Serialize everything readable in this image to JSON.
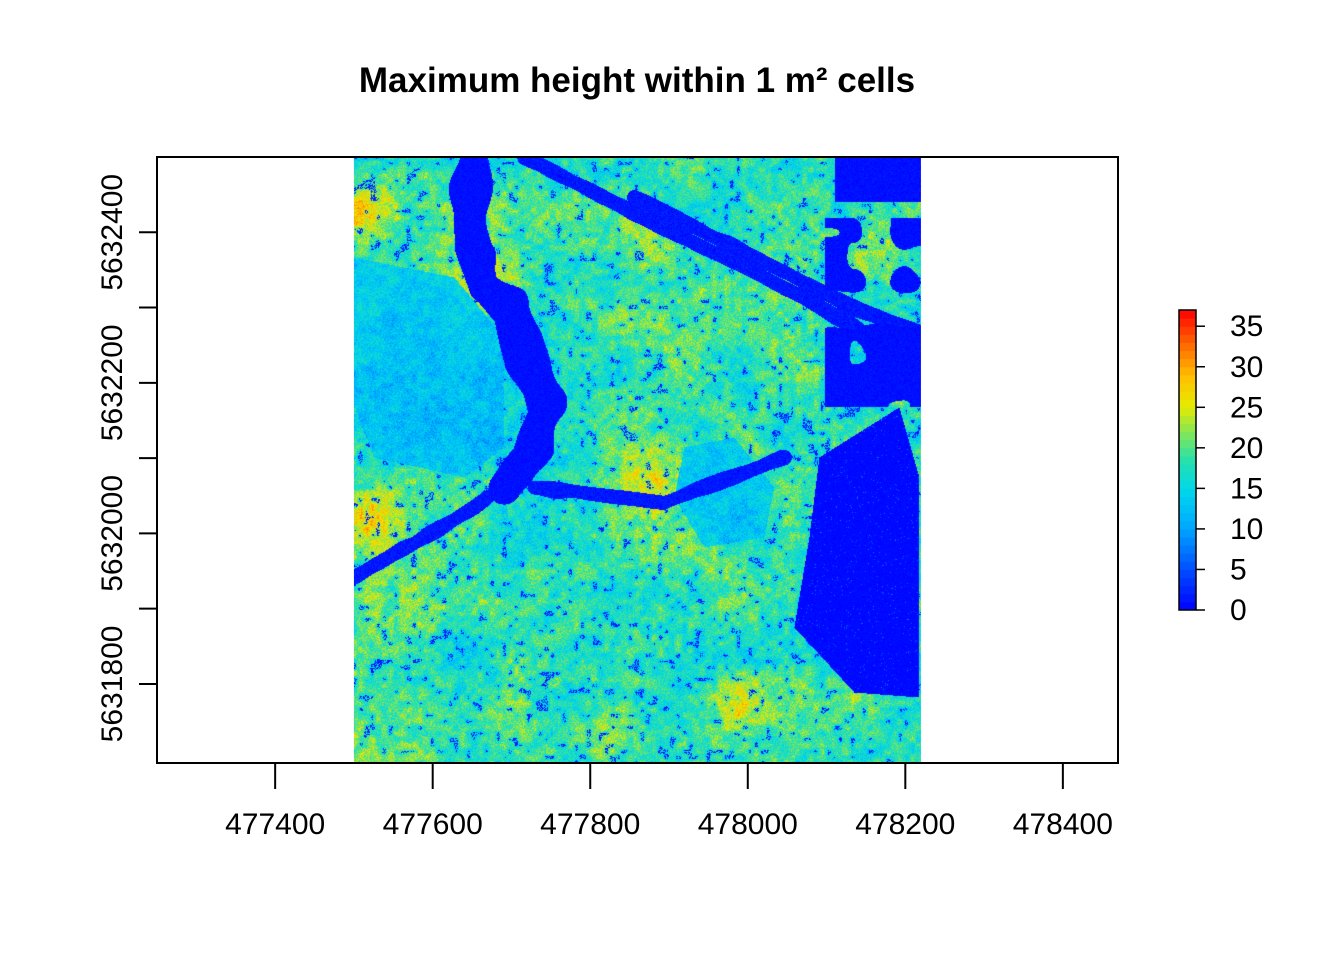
{
  "chart_data": {
    "type": "heatmap",
    "title": "Maximum height within 1 m² cells",
    "xlabel": "",
    "ylabel": "",
    "xlim": [
      477250,
      478470
    ],
    "ylim": [
      5631695,
      5632500
    ],
    "raster_extent": {
      "x": [
        477500,
        478220
      ],
      "y": [
        5631695,
        5632500
      ]
    },
    "x_ticks": [
      477400,
      477600,
      477800,
      478000,
      478200,
      478400
    ],
    "y_ticks": [
      5631800,
      5631900,
      5632000,
      5632100,
      5632200,
      5632300,
      5632400
    ],
    "y_tick_labels": [
      {
        "value": 5631800,
        "label": "5631800"
      },
      {
        "value": 5632000,
        "label": "5632000"
      },
      {
        "value": 5632200,
        "label": "5632200"
      },
      {
        "value": 5632400,
        "label": "5632400"
      }
    ],
    "colorbar": {
      "min": 0,
      "max": 37,
      "ticks": [
        0,
        5,
        10,
        15,
        20,
        25,
        30,
        35
      ],
      "tick_labels": [
        "0",
        "5",
        "10",
        "15",
        "20",
        "25",
        "30",
        "35"
      ],
      "palette": [
        "#0000ff",
        "#0040ff",
        "#0080ff",
        "#00bfff",
        "#00e6e6",
        "#19e6b3",
        "#66e680",
        "#b3e633",
        "#e6e600",
        "#ffbf00",
        "#ff8000",
        "#ff4000",
        "#ff0000"
      ]
    },
    "value_range": [
      0,
      37
    ],
    "dominant_colors": {
      "ground": "#0000ff",
      "canopy_low": "#00bfff",
      "canopy_mid": "#33d9a6",
      "canopy_high": "#e6e600"
    },
    "grid": false,
    "legend_position": "right"
  }
}
